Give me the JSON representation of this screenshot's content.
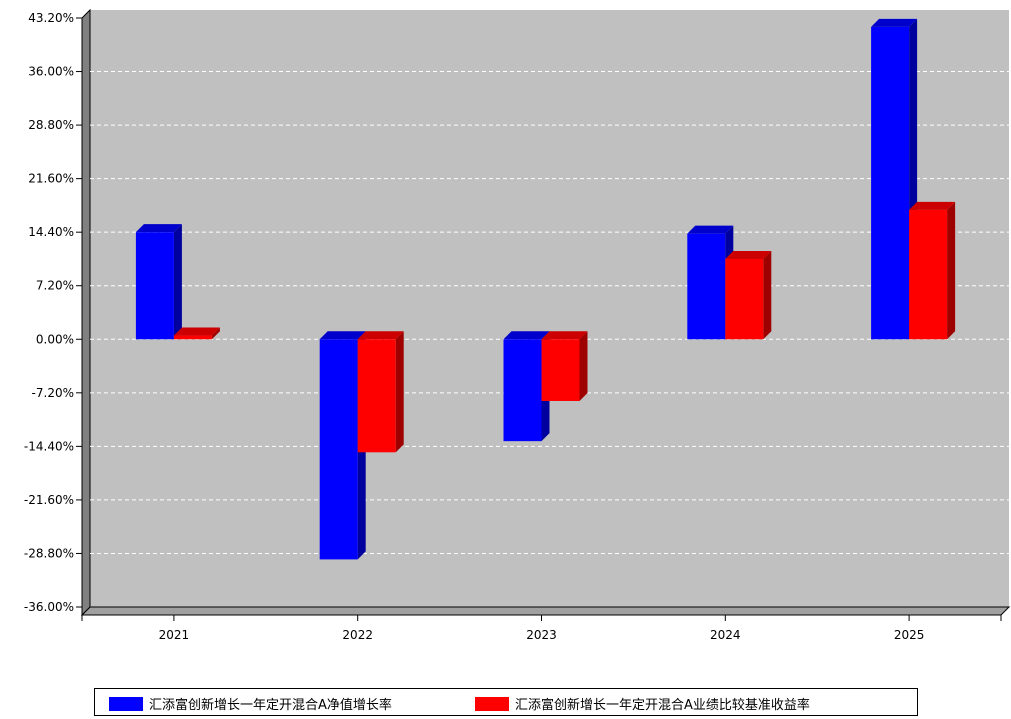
{
  "chart_data": {
    "type": "bar",
    "categories": [
      "2021",
      "2022",
      "2023",
      "2024",
      "2025"
    ],
    "series": [
      {
        "name": "汇添富创新增长一年定开混合A净值增长率",
        "color": "#0000ff",
        "values": [
          14.4,
          -29.6,
          -13.7,
          14.2,
          42.0
        ]
      },
      {
        "name": "汇添富创新增长一年定开混合A业绩比较基准收益率",
        "color": "#ff0000",
        "values": [
          0.5,
          -15.2,
          -8.3,
          10.8,
          17.4
        ]
      }
    ],
    "ylim": [
      -36.0,
      43.2
    ],
    "yticks": [
      "43.20%",
      "36.00%",
      "28.80%",
      "21.60%",
      "14.40%",
      "7.20%",
      "0.00%",
      "-7.20%",
      "-14.40%",
      "-21.60%",
      "-28.80%",
      "-36.00%"
    ],
    "grid": true,
    "legend_position": "bottom",
    "plot_background": "#c0c0c0"
  }
}
